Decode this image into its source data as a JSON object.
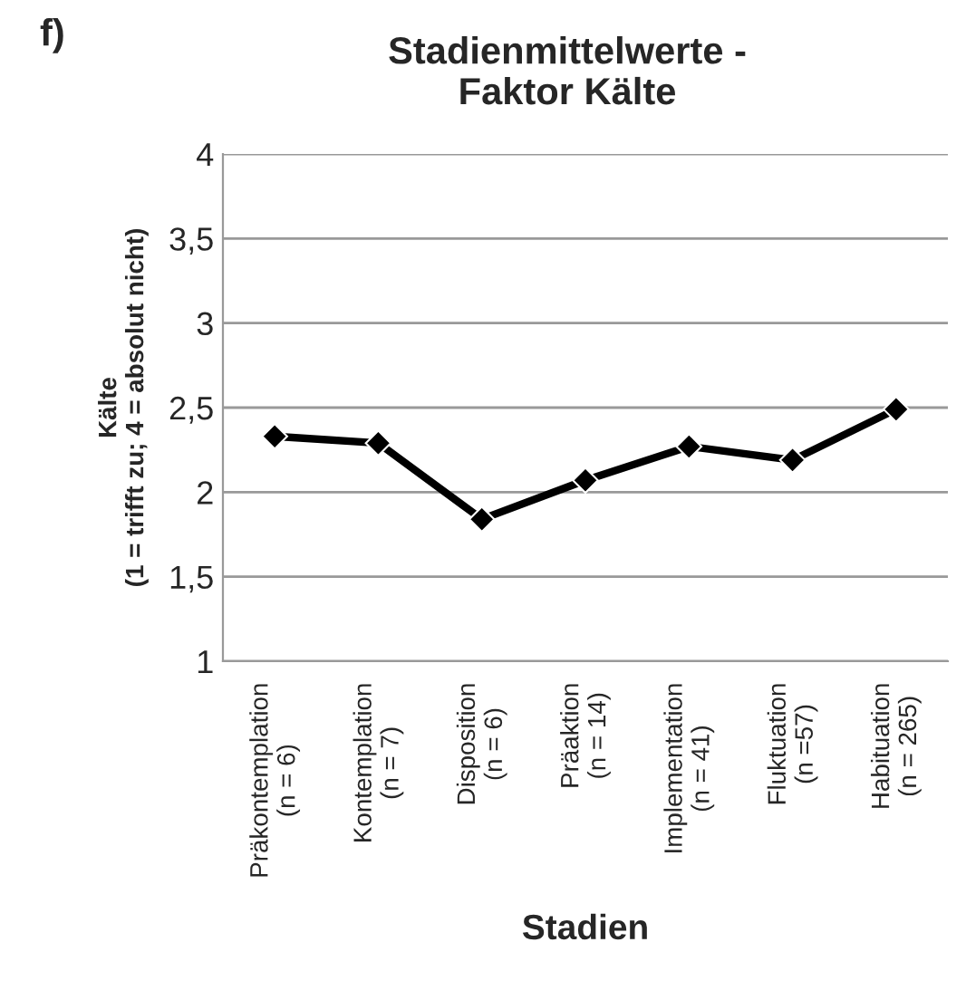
{
  "chart_data": {
    "type": "line",
    "title": "Stadienmittelwerte -\nFaktor Kälte",
    "xlabel": "Stadien",
    "ylabel": "Kälte\n(1 = trifft zu; 4 = absolut nicht)",
    "annotations": [
      "f)"
    ],
    "categories": [
      "Präkontemplation\n(n = 6)",
      "Kontemplation\n(n = 7)",
      "Disposition\n(n = 6)",
      "Präaktion\n(n = 14)",
      "Implementation\n(n = 41)",
      "Fluktuation\n(n =57)",
      "Habituation\n(n = 265)"
    ],
    "series": [
      {
        "color": "#000000",
        "values": [
          2.33,
          2.29,
          1.84,
          2.07,
          2.27,
          2.19,
          2.49
        ]
      }
    ],
    "ylim": [
      1,
      4
    ],
    "yticks": [
      {
        "value": 1,
        "label": "1"
      },
      {
        "value": 1.5,
        "label": "1,5"
      },
      {
        "value": 2,
        "label": "2"
      },
      {
        "value": 2.5,
        "label": "2,5"
      },
      {
        "value": 3,
        "label": "3"
      },
      {
        "value": 3.5,
        "label": "3,5"
      },
      {
        "value": 4,
        "label": "4"
      }
    ],
    "grid": "y",
    "legend": false,
    "marker": "diamond",
    "line_style": "solid"
  }
}
